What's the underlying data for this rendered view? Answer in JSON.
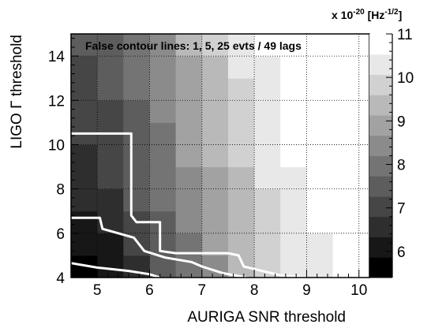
{
  "chart_data": {
    "type": "heatmap",
    "title": "",
    "xlabel": "AURIGA SNR threshold",
    "ylabel": "LIGO Γ threshold",
    "annotation": "False contour lines: 1, 5, 25 evts / 49 lags",
    "colorbar_unit": "x 10⁻²⁰ [Hz⁻¹ᐟ²]",
    "xlim": [
      4.5,
      10.2
    ],
    "ylim": [
      4,
      15
    ],
    "zlim": [
      5.4,
      11
    ],
    "x_ticks": [
      5,
      6,
      7,
      8,
      9,
      10
    ],
    "y_ticks": [
      4,
      6,
      8,
      10,
      12,
      14
    ],
    "z_ticks": [
      6,
      7,
      8,
      9,
      10,
      11
    ],
    "x_edges": [
      4.5,
      5.0,
      5.5,
      6.0,
      6.5,
      7.0,
      7.5,
      8.0,
      8.5,
      9.0,
      9.5,
      10.0,
      10.2
    ],
    "y_edges": [
      4,
      5,
      6,
      7,
      8,
      9,
      10,
      11,
      12,
      13,
      14,
      15
    ],
    "z": [
      [
        5.5,
        6.0,
        6.6,
        7.3,
        8.0,
        8.6,
        9.2,
        9.7,
        10.1,
        10.4,
        10.6,
        10.7
      ],
      [
        5.9,
        6.3,
        6.9,
        7.5,
        8.2,
        8.8,
        9.3,
        9.8,
        10.2,
        10.5,
        10.7,
        10.8
      ],
      [
        6.3,
        6.6,
        7.1,
        7.7,
        8.3,
        8.9,
        9.4,
        9.9,
        10.3,
        10.6,
        10.8,
        10.9
      ],
      [
        6.5,
        6.8,
        7.3,
        7.9,
        8.5,
        9.0,
        9.5,
        10.0,
        10.4,
        10.7,
        10.9,
        11.0
      ],
      [
        6.7,
        6.9,
        7.4,
        8.0,
        8.6,
        9.1,
        9.6,
        10.1,
        10.5,
        10.8,
        10.9,
        11.0
      ],
      [
        6.8,
        7.0,
        7.5,
        8.1,
        8.7,
        9.2,
        9.7,
        10.2,
        10.6,
        10.9,
        11.0,
        11.0
      ],
      [
        6.9,
        7.1,
        7.6,
        8.2,
        8.8,
        9.3,
        9.8,
        10.3,
        10.6,
        10.9,
        11.0,
        11.0
      ],
      [
        7.0,
        7.2,
        7.7,
        8.3,
        8.9,
        9.4,
        9.9,
        10.3,
        10.7,
        10.9,
        11.0,
        11.0
      ],
      [
        7.1,
        7.3,
        7.8,
        8.4,
        9.0,
        9.5,
        10.0,
        10.4,
        10.7,
        11.0,
        11.0,
        11.0
      ],
      [
        7.2,
        7.4,
        7.9,
        8.5,
        9.1,
        9.6,
        10.1,
        10.5,
        10.8,
        11.0,
        11.0,
        11.0
      ],
      [
        7.3,
        7.5,
        8.0,
        8.6,
        9.2,
        9.7,
        10.2,
        10.6,
        10.9,
        11.0,
        11.0,
        11.0
      ]
    ],
    "contours": [
      {
        "name": "1",
        "points": [
          [
            4.5,
            10.5
          ],
          [
            5.65,
            10.5
          ],
          [
            5.65,
            6.8
          ],
          [
            5.75,
            6.5
          ],
          [
            6.2,
            6.5
          ],
          [
            6.2,
            5.2
          ],
          [
            6.5,
            5.1
          ],
          [
            7.5,
            5.1
          ],
          [
            7.7,
            5.0
          ],
          [
            7.8,
            4.5
          ],
          [
            8.5,
            4.1
          ],
          [
            9.0,
            4.0
          ]
        ]
      },
      {
        "name": "5",
        "points": [
          [
            4.5,
            6.7
          ],
          [
            5.05,
            6.7
          ],
          [
            5.1,
            6.2
          ],
          [
            5.4,
            6.0
          ],
          [
            5.7,
            5.8
          ],
          [
            5.9,
            5.2
          ],
          [
            6.3,
            4.9
          ],
          [
            6.8,
            4.7
          ],
          [
            7.0,
            4.5
          ],
          [
            7.4,
            4.2
          ],
          [
            7.85,
            4.0
          ]
        ]
      },
      {
        "name": "25",
        "points": [
          [
            4.5,
            4.65
          ],
          [
            5.0,
            4.45
          ],
          [
            5.6,
            4.3
          ],
          [
            6.0,
            4.15
          ],
          [
            6.2,
            4.0
          ]
        ]
      }
    ]
  }
}
